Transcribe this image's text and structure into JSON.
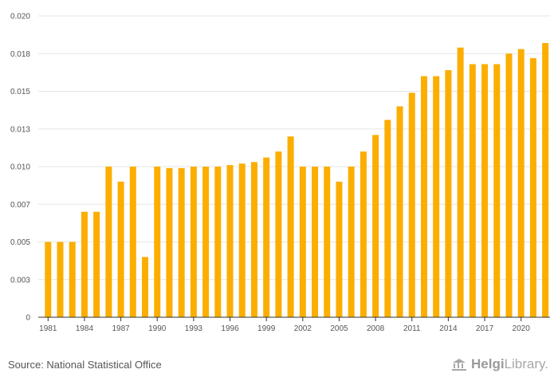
{
  "chart_data": {
    "type": "bar",
    "title": "",
    "xlabel": "",
    "ylabel": "",
    "ylim": [
      0,
      0.02
    ],
    "y_ticks": [
      "0",
      "0.003",
      "0.005",
      "0.007",
      "0.010",
      "0.013",
      "0.015",
      "0.018",
      "0.020"
    ],
    "y_tick_values": [
      0,
      0.0025,
      0.005,
      0.0075,
      0.01,
      0.0125,
      0.015,
      0.0175,
      0.02
    ],
    "x_ticks": [
      "1981",
      "1984",
      "1987",
      "1990",
      "1993",
      "1996",
      "1999",
      "2002",
      "2005",
      "2008",
      "2011",
      "2014",
      "2017",
      "2020"
    ],
    "grid": true,
    "categories": [
      "1981",
      "1982",
      "1983",
      "1984",
      "1985",
      "1986",
      "1987",
      "1988",
      "1989",
      "1990",
      "1991",
      "1992",
      "1993",
      "1994",
      "1995",
      "1996",
      "1997",
      "1998",
      "1999",
      "2000",
      "2001",
      "2002",
      "2003",
      "2004",
      "2005",
      "2006",
      "2007",
      "2008",
      "2009",
      "2010",
      "2011",
      "2012",
      "2013",
      "2014",
      "2015",
      "2016",
      "2017",
      "2018",
      "2019",
      "2020",
      "2021",
      "2022"
    ],
    "values": [
      0.005,
      0.005,
      0.005,
      0.007,
      0.007,
      0.01,
      0.009,
      0.01,
      0.004,
      0.01,
      0.0099,
      0.0099,
      0.01,
      0.01,
      0.01,
      0.0101,
      0.0102,
      0.0103,
      0.0106,
      0.011,
      0.012,
      0.01,
      0.01,
      0.01,
      0.009,
      0.01,
      0.011,
      0.0121,
      0.0131,
      0.014,
      0.0149,
      0.016,
      0.016,
      0.0164,
      0.0179,
      0.0168,
      0.0168,
      0.0168,
      0.0175,
      0.0178,
      0.0172,
      0.0182
    ],
    "bar_color": "#fbae00"
  },
  "footer": {
    "source": "Source: National Statistical Office",
    "logo_text_bold": "Helgi",
    "logo_text": "Library."
  }
}
